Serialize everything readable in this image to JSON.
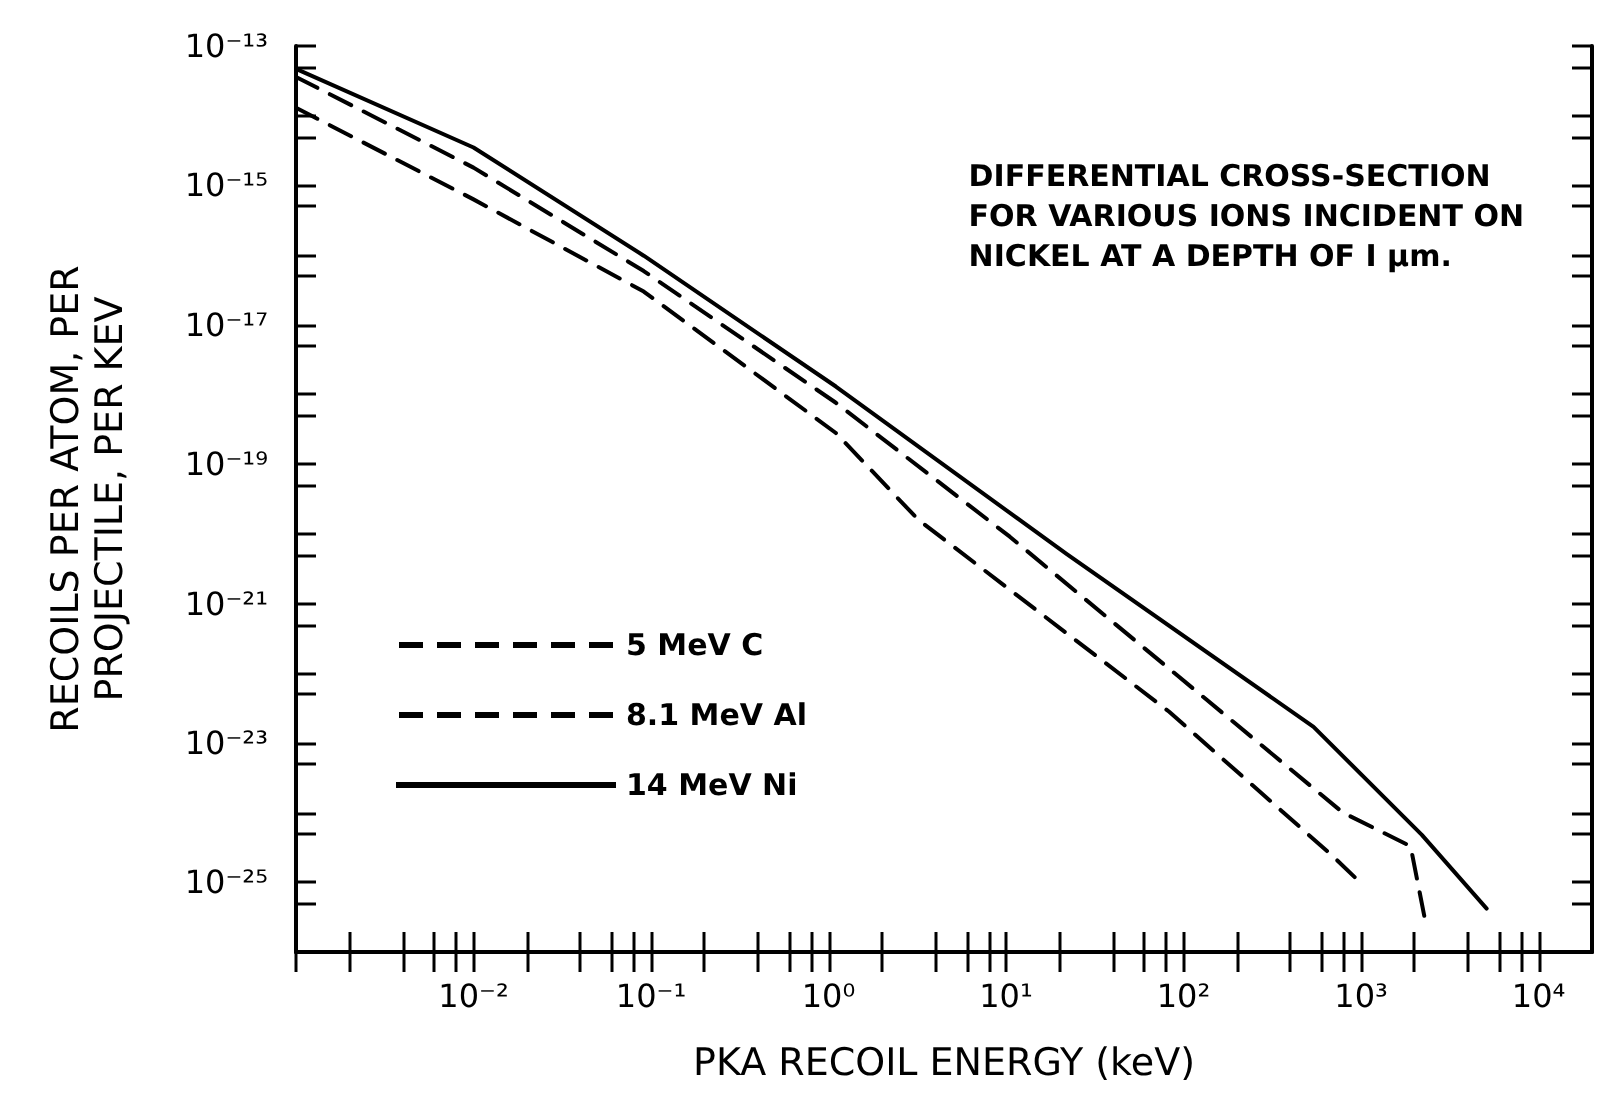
{
  "chart_data": {
    "type": "line",
    "annotations": [
      "DIFFERENTIAL CROSS-SECTION\nFOR VARIOUS IONS INCIDENT ON\nNICKEL AT A DEPTH OF I μm."
    ],
    "xlabel": "PKA RECOIL ENERGY (keV)",
    "ylabel": "RECOILS PER ATOM, PER\nPROJECTILE, PER KEV",
    "log": "xy",
    "grid": false,
    "legend": "bottom left",
    "marker": "none",
    "xlim": [
      0.001,
      20000
    ],
    "ylim": [
      1e-26,
      1e-13
    ],
    "xticks": [
      {
        "value": 0.001,
        "label": null
      },
      {
        "value": 0.002,
        "label": null
      },
      {
        "value": 0.004,
        "label": null
      },
      {
        "value": 0.006,
        "label": null
      },
      {
        "value": 0.008,
        "label": null
      },
      {
        "value": 0.01,
        "label": "10⁻²"
      },
      {
        "value": 0.02,
        "label": null
      },
      {
        "value": 0.04,
        "label": null
      },
      {
        "value": 0.06,
        "label": null
      },
      {
        "value": 0.08,
        "label": null
      },
      {
        "value": 0.1,
        "label": "10⁻¹"
      },
      {
        "value": 0.2,
        "label": null
      },
      {
        "value": 0.4,
        "label": null
      },
      {
        "value": 0.6,
        "label": null
      },
      {
        "value": 0.8,
        "label": null
      },
      {
        "value": 1,
        "label": "10⁰"
      },
      {
        "value": 2,
        "label": null
      },
      {
        "value": 4,
        "label": null
      },
      {
        "value": 6,
        "label": null
      },
      {
        "value": 8,
        "label": null
      },
      {
        "value": 10,
        "label": "10¹"
      },
      {
        "value": 20,
        "label": null
      },
      {
        "value": 40,
        "label": null
      },
      {
        "value": 60,
        "label": null
      },
      {
        "value": 80,
        "label": null
      },
      {
        "value": 100,
        "label": "10²"
      },
      {
        "value": 200,
        "label": null
      },
      {
        "value": 400,
        "label": null
      },
      {
        "value": 600,
        "label": null
      },
      {
        "value": 800,
        "label": null
      },
      {
        "value": 1000,
        "label": "10³"
      },
      {
        "value": 2000,
        "label": null
      },
      {
        "value": 4000,
        "label": null
      },
      {
        "value": 6000,
        "label": null
      },
      {
        "value": 8000,
        "label": null
      },
      {
        "value": 10000,
        "label": "10⁴"
      }
    ],
    "yticks": [
      {
        "value": 1e-13,
        "label": "10⁻¹³"
      },
      {
        "value": 5e-14,
        "label": null
      },
      {
        "value": 1e-14,
        "label": null
      },
      {
        "value": 5e-15,
        "label": null
      },
      {
        "value": 1e-15,
        "label": "10⁻¹⁵"
      },
      {
        "value": 5e-16,
        "label": null
      },
      {
        "value": 1e-16,
        "label": null
      },
      {
        "value": 5e-17,
        "label": null
      },
      {
        "value": 1e-17,
        "label": "10⁻¹⁷"
      },
      {
        "value": 5e-18,
        "label": null
      },
      {
        "value": 1e-18,
        "label": null
      },
      {
        "value": 5e-19,
        "label": null
      },
      {
        "value": 1e-19,
        "label": "10⁻¹⁹"
      },
      {
        "value": 5e-20,
        "label": null
      },
      {
        "value": 1e-20,
        "label": null
      },
      {
        "value": 5e-21,
        "label": null
      },
      {
        "value": 1e-21,
        "label": "10⁻²¹"
      },
      {
        "value": 5e-22,
        "label": null
      },
      {
        "value": 1e-22,
        "label": null
      },
      {
        "value": 5e-23,
        "label": null
      },
      {
        "value": 1e-23,
        "label": "10⁻²³"
      },
      {
        "value": 5e-24,
        "label": null
      },
      {
        "value": 1e-24,
        "label": null
      },
      {
        "value": 5e-25,
        "label": null
      },
      {
        "value": 1e-25,
        "label": "10⁻²⁵"
      },
      {
        "value": 5e-26,
        "label": null
      }
    ],
    "series": [
      {
        "name": "5 MeV C",
        "color": "#000000",
        "line_style": "dashed",
        "x": [
          0.001,
          0.01,
          0.091,
          1.1,
          3.2,
          83,
          690,
          950
        ],
        "values": [
          1.3e-14,
          6.3e-16,
          3e-17,
          2.8e-19,
          1.6e-20,
          2.8e-23,
          2.4e-25,
          1.1e-25
        ]
      },
      {
        "name": "8.1 MeV Al",
        "color": "#000000",
        "line_style": "dashed",
        "x": [
          0.001,
          0.01,
          0.091,
          1.1,
          10.5,
          790,
          1900,
          2300
        ],
        "values": [
          3.6e-14,
          1.8e-15,
          5.9e-17,
          7.6e-19,
          9.1e-21,
          1e-24,
          3.3e-25,
          2.8e-26
        ]
      },
      {
        "name": "14 MeV Ni",
        "color": "#000000",
        "line_style": "solid",
        "x": [
          0.001,
          0.01,
          0.091,
          1.1,
          22,
          540,
          2200,
          5100
        ],
        "values": [
          4.7e-14,
          3.5e-15,
          9.8e-17,
          1.3e-18,
          5.1e-21,
          1.7e-23,
          4.8e-25,
          4.2e-26
        ]
      }
    ]
  }
}
